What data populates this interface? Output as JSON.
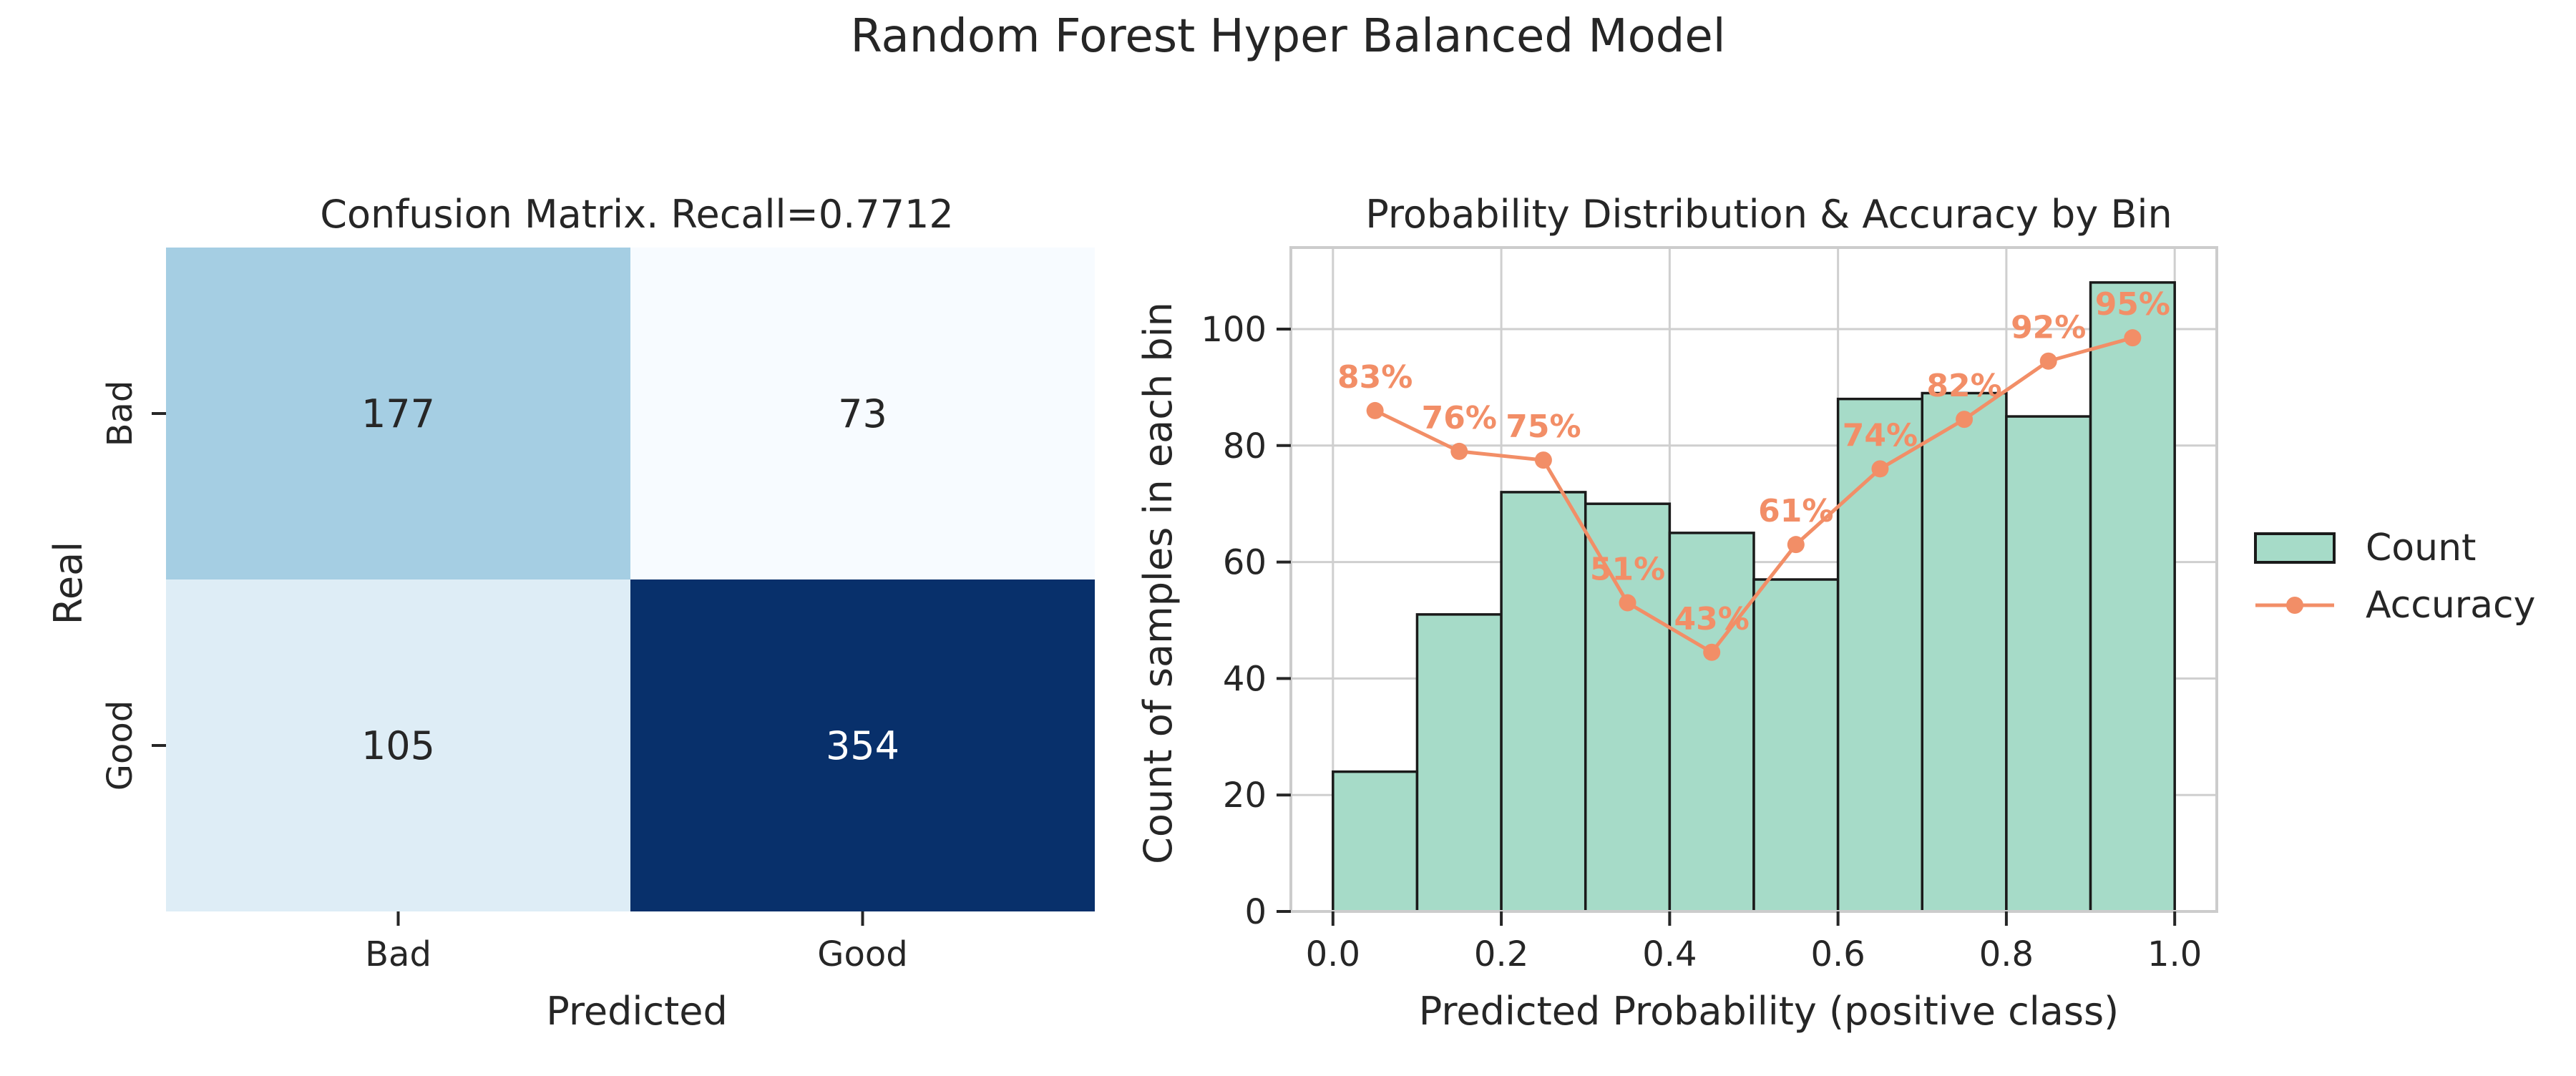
{
  "figure": {
    "title": "Random Forest Hyper Balanced Model"
  },
  "colors": {
    "text": "#262626",
    "heat_high": "#08306b",
    "heat_low": "#f7fbff",
    "bar_fill": "#a6dbc8",
    "bar_edge": "#1a1a1a",
    "line": "#f28e67",
    "grid": "#cfcfcf",
    "spine": "#cccccc"
  },
  "chart_data": [
    {
      "type": "heatmap",
      "title": "Confusion Matrix. Recall=0.7712",
      "xlabel": "Predicted",
      "ylabel": "Real",
      "x_categories": [
        "Bad",
        "Good"
      ],
      "y_categories": [
        "Bad",
        "Good"
      ],
      "values": [
        [
          177,
          73
        ],
        [
          105,
          354
        ]
      ],
      "colormap": "Blues"
    },
    {
      "type": "bar",
      "title": "Probability Distribution & Accuracy by Bin",
      "xlabel": "Predicted Probability (positive class)",
      "ylabel": "Count of samples in each bin",
      "xlim": [
        -0.05,
        1.05
      ],
      "ylim": [
        0,
        114
      ],
      "x_ticks": [
        "0.0",
        "0.2",
        "0.4",
        "0.6",
        "0.8",
        "1.0"
      ],
      "y_ticks": [
        "0",
        "20",
        "40",
        "60",
        "80",
        "100"
      ],
      "grid": true,
      "legend_position": "right",
      "bins": [
        {
          "start": 0.0,
          "end": 0.1,
          "count": 24
        },
        {
          "start": 0.1,
          "end": 0.2,
          "count": 51
        },
        {
          "start": 0.2,
          "end": 0.3,
          "count": 72
        },
        {
          "start": 0.3,
          "end": 0.4,
          "count": 70
        },
        {
          "start": 0.4,
          "end": 0.5,
          "count": 65
        },
        {
          "start": 0.5,
          "end": 0.6,
          "count": 57
        },
        {
          "start": 0.6,
          "end": 0.7,
          "count": 88
        },
        {
          "start": 0.7,
          "end": 0.8,
          "count": 89
        },
        {
          "start": 0.8,
          "end": 0.9,
          "count": 85
        },
        {
          "start": 0.9,
          "end": 1.0,
          "count": 108
        }
      ],
      "series": [
        {
          "name": "Count",
          "type": "bar"
        },
        {
          "name": "Accuracy",
          "type": "line",
          "x": [
            0.05,
            0.15,
            0.25,
            0.35,
            0.45,
            0.55,
            0.65,
            0.75,
            0.85,
            0.95
          ],
          "values": [
            86,
            79,
            77.5,
            53,
            44.5,
            63,
            76,
            84.5,
            94.5,
            98.5
          ],
          "labels": [
            "83%",
            "76%",
            "75%",
            "51%",
            "43%",
            "61%",
            "74%",
            "82%",
            "92%",
            "95%"
          ]
        }
      ]
    }
  ]
}
